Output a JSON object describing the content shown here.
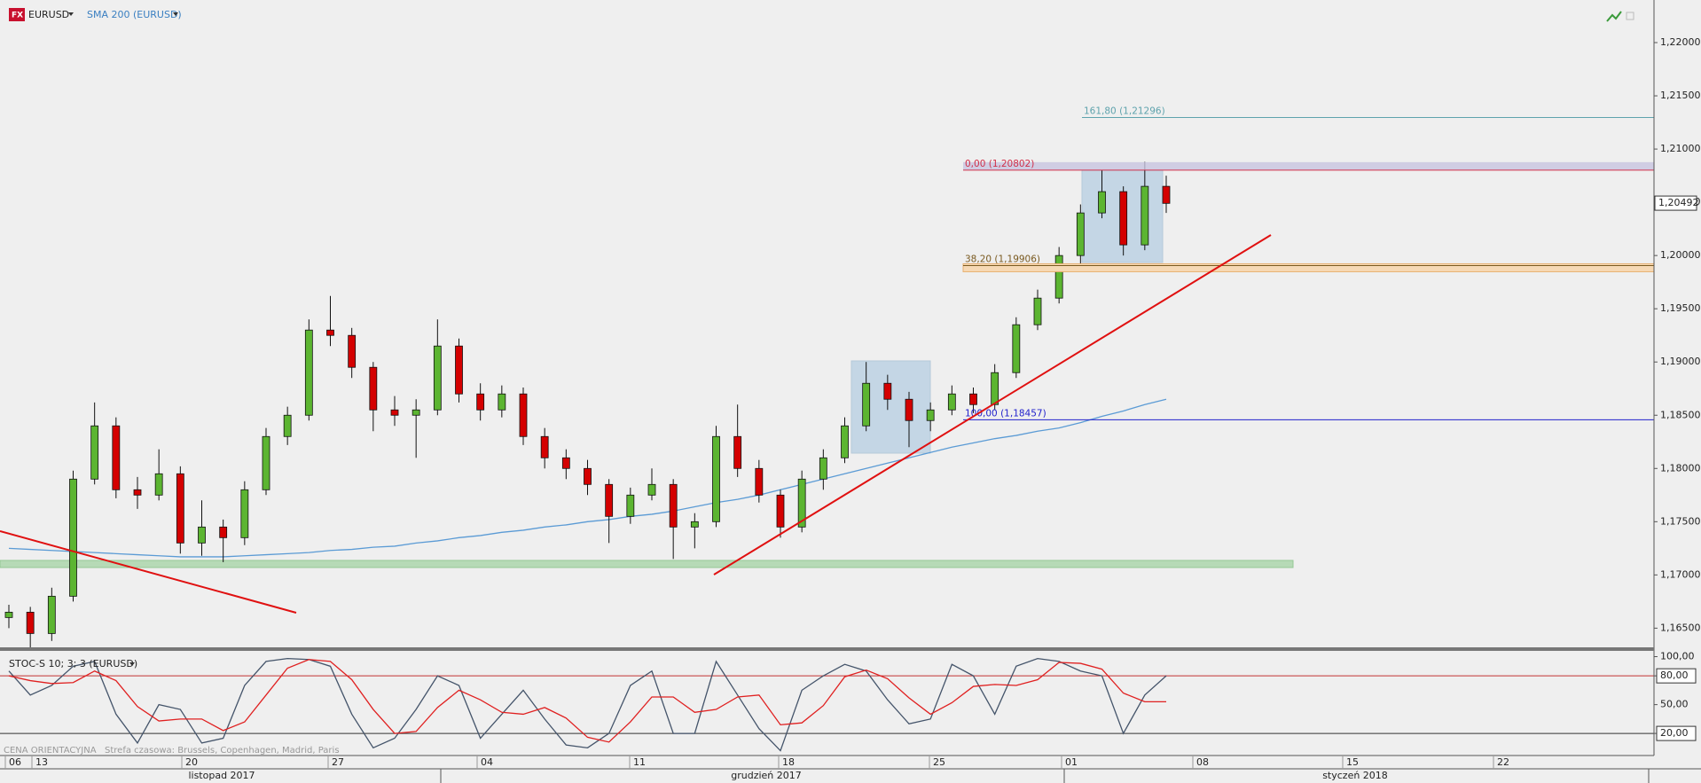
{
  "chart_data": [
    {
      "type": "candlestick",
      "title": "EURUSD",
      "open": [
        1.166,
        1.1665,
        1.1645,
        1.168,
        1.179,
        1.184,
        1.178,
        1.1775,
        1.1795,
        1.173,
        1.1745,
        1.1735,
        1.178,
        1.183,
        1.185,
        1.193,
        1.1925,
        1.1895,
        1.1855,
        1.185,
        1.1855,
        1.1915,
        1.187,
        1.1855,
        1.187,
        1.183,
        1.181,
        1.18,
        1.1785,
        1.1755,
        1.1775,
        1.1785,
        1.1745,
        1.175,
        1.183,
        1.18,
        1.1775,
        1.1745,
        1.179,
        1.181,
        1.184,
        1.188,
        1.1865,
        1.1845,
        1.1855,
        1.187,
        1.186,
        1.189,
        1.1935,
        1.196,
        1.2,
        1.204,
        1.206,
        1.201,
        1.2065
      ],
      "high": [
        1.1672,
        1.167,
        1.1688,
        1.1798,
        1.1862,
        1.1848,
        1.1792,
        1.1818,
        1.1802,
        1.177,
        1.1752,
        1.1788,
        1.1838,
        1.1858,
        1.194,
        1.1962,
        1.1932,
        1.19,
        1.1868,
        1.1865,
        1.194,
        1.1922,
        1.188,
        1.1878,
        1.1876,
        1.1838,
        1.1818,
        1.1808,
        1.179,
        1.1782,
        1.18,
        1.179,
        1.1758,
        1.184,
        1.186,
        1.1808,
        1.178,
        1.1798,
        1.1818,
        1.1848,
        1.19,
        1.1888,
        1.1872,
        1.1862,
        1.1878,
        1.1876,
        1.1898,
        1.1942,
        1.1968,
        1.2008,
        1.2048,
        1.208,
        1.2065,
        1.2088,
        1.2075
      ],
      "low": [
        1.165,
        1.1632,
        1.1638,
        1.1675,
        1.1785,
        1.1772,
        1.1762,
        1.177,
        1.172,
        1.1718,
        1.1712,
        1.1728,
        1.1775,
        1.1822,
        1.1845,
        1.1915,
        1.1885,
        1.1835,
        1.184,
        1.181,
        1.185,
        1.1862,
        1.1845,
        1.1848,
        1.1822,
        1.18,
        1.179,
        1.1775,
        1.173,
        1.1748,
        1.177,
        1.1715,
        1.1725,
        1.1745,
        1.1792,
        1.1768,
        1.1735,
        1.174,
        1.178,
        1.1805,
        1.1835,
        1.1855,
        1.182,
        1.1835,
        1.185,
        1.1852,
        1.1855,
        1.1885,
        1.193,
        1.1955,
        1.199,
        1.2035,
        1.2,
        1.2005,
        1.204
      ],
      "close": [
        1.1665,
        1.1645,
        1.168,
        1.179,
        1.184,
        1.178,
        1.1775,
        1.1795,
        1.173,
        1.1745,
        1.1735,
        1.178,
        1.183,
        1.185,
        1.193,
        1.1925,
        1.1895,
        1.1855,
        1.185,
        1.1855,
        1.1915,
        1.187,
        1.1855,
        1.187,
        1.183,
        1.181,
        1.18,
        1.1785,
        1.1755,
        1.1775,
        1.1785,
        1.1745,
        1.175,
        1.183,
        1.18,
        1.1775,
        1.1745,
        1.179,
        1.181,
        1.184,
        1.188,
        1.1865,
        1.1845,
        1.1855,
        1.187,
        1.186,
        1.189,
        1.1935,
        1.196,
        1.2,
        1.204,
        1.206,
        1.201,
        1.2065,
        1.2049
      ],
      "up_color": "#5cb531",
      "down_color": "#d40000",
      "series": [
        {
          "name": "SMA 200 (EURUSD)",
          "color": "#5b9bd5",
          "values": [
            1.1725,
            1.1724,
            1.1723,
            1.1722,
            1.1721,
            1.172,
            1.1719,
            1.1718,
            1.1717,
            1.1717,
            1.1717,
            1.1718,
            1.1719,
            1.172,
            1.1721,
            1.1723,
            1.1724,
            1.1726,
            1.1727,
            1.173,
            1.1732,
            1.1735,
            1.1737,
            1.174,
            1.1742,
            1.1745,
            1.1747,
            1.175,
            1.1752,
            1.1755,
            1.1757,
            1.176,
            1.1764,
            1.1768,
            1.1771,
            1.1775,
            1.178,
            1.1785,
            1.179,
            1.1795,
            1.18,
            1.1805,
            1.181,
            1.1815,
            1.182,
            1.1824,
            1.1828,
            1.1831,
            1.1835,
            1.1838,
            1.1843,
            1.1849,
            1.1854,
            1.186,
            1.1865
          ]
        }
      ],
      "ylim": [
        1.1632,
        1.224
      ],
      "yticks": [
        {
          "value": 1.165,
          "label": "1,16500"
        },
        {
          "value": 1.17,
          "label": "1,17000"
        },
        {
          "value": 1.175,
          "label": "1,17500"
        },
        {
          "value": 1.18,
          "label": "1,18000"
        },
        {
          "value": 1.185,
          "label": "1,18500"
        },
        {
          "value": 1.19,
          "label": "1,19000"
        },
        {
          "value": 1.195,
          "label": "1,19500"
        },
        {
          "value": 1.2,
          "label": "1,20000"
        },
        {
          "value": 1.205,
          "label": "1,20500"
        },
        {
          "value": 1.21,
          "label": "1,21000"
        },
        {
          "value": 1.215,
          "label": "1,21500"
        },
        {
          "value": 1.22,
          "label": "1,22000"
        }
      ],
      "last_price": {
        "value": 1.20492,
        "label": "1,20492"
      },
      "fib_levels": [
        {
          "value": 1.21296,
          "label": "161,80 (1,21296)",
          "color": "#5fa3ad"
        },
        {
          "value": 1.20802,
          "label": "0,00 (1,20802)",
          "color": "#d0304a"
        },
        {
          "value": 1.19906,
          "label": "38,20 (1,19906)",
          "color": "#7a5a20"
        },
        {
          "value": 1.18457,
          "label": "100,00 (1,18457)",
          "color": "#2222cc"
        }
      ]
    },
    {
      "type": "line",
      "title": "STOC-S 10; 3; 3 (EURUSD)",
      "series": [
        {
          "color": "#44546a",
          "values": [
            85,
            60,
            70,
            90,
            95,
            40,
            10,
            50,
            45,
            10,
            15,
            70,
            95,
            98,
            97,
            90,
            40,
            5,
            15,
            45,
            80,
            70,
            15,
            40,
            65,
            35,
            8,
            5,
            20,
            70,
            85,
            20,
            20,
            95,
            60,
            25,
            2,
            65,
            80,
            92,
            85,
            55,
            30,
            35,
            92,
            80,
            40,
            90,
            98,
            95,
            85,
            80,
            20,
            60,
            80
          ]
        },
        {
          "color": "#e02020",
          "values": [
            80,
            75,
            72,
            73,
            85,
            75,
            48,
            33,
            35,
            35,
            23,
            32,
            60,
            88,
            97,
            95,
            76,
            45,
            20,
            22,
            47,
            65,
            55,
            42,
            40,
            47,
            36,
            16,
            11,
            32,
            58,
            58,
            42,
            45,
            58,
            60,
            29,
            31,
            49,
            79,
            86,
            77,
            57,
            40,
            52,
            69,
            71,
            70,
            76,
            94,
            93,
            87,
            62,
            53,
            53
          ]
        }
      ],
      "ylim": [
        -3,
        106
      ],
      "yticks": [
        {
          "value": 100,
          "label": "100,00"
        },
        {
          "value": 80,
          "label": "80,00"
        },
        {
          "value": 50,
          "label": "50,00"
        },
        {
          "value": 20,
          "label": "20,00"
        }
      ],
      "levels": [
        80,
        20
      ]
    }
  ],
  "x_axis": {
    "dates": [
      "06",
      "13",
      "20",
      "27",
      "04",
      "11",
      "18",
      "25",
      "01",
      "08",
      "15",
      "22"
    ],
    "months": [
      "listopad 2017",
      "grudzień 2017",
      "styczeń 2018"
    ]
  },
  "footer": {
    "price_note": "CENA ORIENTACYJNA",
    "timezone": "Strefa czasowa: Brussels, Copenhagen, Madrid, Paris"
  }
}
